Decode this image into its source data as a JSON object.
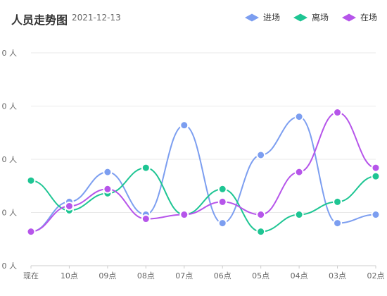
{
  "header": {
    "title": "人员走势图",
    "date": "2021-12-13"
  },
  "chart_data": {
    "type": "line",
    "smooth": true,
    "grid": "horizontal",
    "legend_position": "top-right",
    "categories": [
      "现在",
      "10点",
      "09点",
      "08点",
      "07点",
      "06点",
      "05点",
      "04点",
      "03点",
      "02点"
    ],
    "y_tick_labels": [
      "0 人",
      "0 人",
      "0 人",
      "0 人",
      "0 人"
    ],
    "ylim": [
      0,
      100
    ],
    "series": [
      {
        "name": "进场",
        "color": "#7c9ef0",
        "values": [
          16,
          30,
          44,
          24,
          66,
          20,
          52,
          70,
          20,
          24
        ]
      },
      {
        "name": "离场",
        "color": "#1ec593",
        "values": [
          40,
          26,
          34,
          46,
          24,
          36,
          16,
          24,
          30,
          42
        ]
      },
      {
        "name": "在场",
        "color": "#b655ea",
        "values": [
          16,
          28,
          36,
          22,
          24,
          30,
          24,
          44,
          72,
          46
        ]
      }
    ]
  }
}
